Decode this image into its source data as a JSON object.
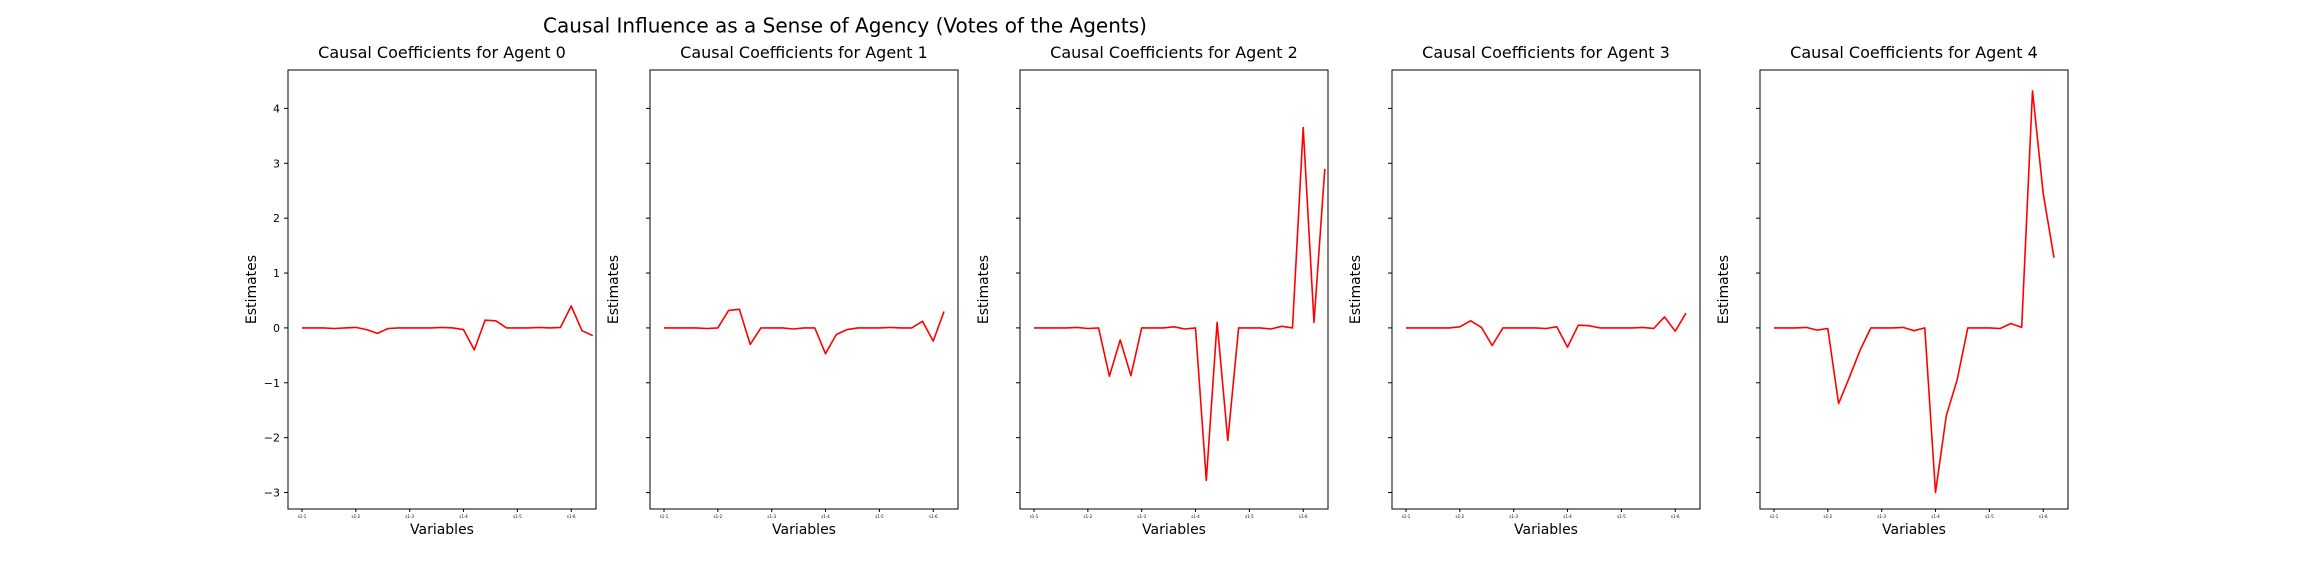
{
  "figure": {
    "suptitle": "Causal Influence as a Sense of Agency (Votes of the Agents)"
  },
  "colors": {
    "line": "#ff0000",
    "axes": "#000000",
    "background": "#ffffff"
  },
  "chart_data": [
    {
      "type": "line",
      "title": "Causal Coefficients for Agent 0",
      "xlabel": "Variables",
      "ylabel": "Estimates",
      "ylim": [
        -3.3,
        4.7
      ],
      "yticks": [
        -3,
        -2,
        -1,
        0,
        1,
        2,
        3,
        4
      ],
      "xtick_labels": [
        "s1-1",
        "s1-2",
        "s1-3",
        "s1-4",
        "s1-5",
        "s1-6"
      ],
      "xtick_positions": [
        0,
        5,
        10,
        15,
        20,
        25
      ],
      "grid": false,
      "series": [
        {
          "values": [
            0.0,
            0.0,
            0.0,
            -0.01,
            0.0,
            0.01,
            -0.03,
            -0.1,
            -0.01,
            0.0,
            0.0,
            0.0,
            0.0,
            0.01,
            0.0,
            -0.03,
            -0.4,
            0.14,
            0.13,
            0.0,
            0.0,
            0.0,
            0.01,
            0.0,
            0.01,
            0.4,
            -0.05,
            -0.14
          ]
        }
      ]
    },
    {
      "type": "line",
      "title": "Causal Coefficients for Agent 1",
      "xlabel": "Variables",
      "ylabel": "Estimates",
      "ylim": [
        -3.3,
        4.7
      ],
      "yticks": [
        -3,
        -2,
        -1,
        0,
        1,
        2,
        3,
        4
      ],
      "xtick_labels": [
        "s1-1",
        "s1-2",
        "s1-3",
        "s1-4",
        "s1-5",
        "s1-6"
      ],
      "xtick_positions": [
        0,
        5,
        10,
        15,
        20,
        25
      ],
      "grid": false,
      "series": [
        {
          "values": [
            0.0,
            0.0,
            0.0,
            0.0,
            -0.01,
            0.0,
            0.32,
            0.34,
            -0.3,
            0.0,
            0.0,
            0.0,
            -0.02,
            0.0,
            0.0,
            -0.47,
            -0.12,
            -0.03,
            0.0,
            0.0,
            0.0,
            0.01,
            0.0,
            0.0,
            0.12,
            -0.24,
            0.3
          ]
        }
      ]
    },
    {
      "type": "line",
      "title": "Causal Coefficients for Agent 2",
      "xlabel": "Variables",
      "ylabel": "Estimates",
      "ylim": [
        -3.3,
        4.7
      ],
      "yticks": [
        -3,
        -2,
        -1,
        0,
        1,
        2,
        3,
        4
      ],
      "xtick_labels": [
        "s1-1",
        "s1-2",
        "s1-3",
        "s1-4",
        "s1-5",
        "s1-6"
      ],
      "xtick_positions": [
        0,
        5,
        10,
        15,
        20,
        25
      ],
      "grid": false,
      "series": [
        {
          "values": [
            0.0,
            0.0,
            0.0,
            0.0,
            0.01,
            -0.01,
            0.0,
            -0.88,
            -0.22,
            -0.87,
            0.0,
            0.0,
            0.0,
            0.02,
            -0.02,
            0.0,
            -2.78,
            0.1,
            -2.05,
            0.0,
            0.0,
            0.0,
            -0.02,
            0.03,
            0.0,
            3.65,
            0.1,
            2.9
          ]
        }
      ]
    },
    {
      "type": "line",
      "title": "Causal Coefficients for Agent 3",
      "xlabel": "Variables",
      "ylabel": "Estimates",
      "ylim": [
        -3.3,
        4.7
      ],
      "yticks": [
        -3,
        -2,
        -1,
        0,
        1,
        2,
        3,
        4
      ],
      "xtick_labels": [
        "s1-1",
        "s1-2",
        "s1-3",
        "s1-4",
        "s1-5",
        "s1-6"
      ],
      "xtick_positions": [
        0,
        5,
        10,
        15,
        20,
        25
      ],
      "grid": false,
      "series": [
        {
          "values": [
            0.0,
            0.0,
            0.0,
            0.0,
            0.0,
            0.02,
            0.13,
            0.01,
            -0.32,
            0.0,
            0.0,
            0.0,
            0.0,
            -0.01,
            0.02,
            -0.35,
            0.05,
            0.04,
            0.0,
            0.0,
            0.0,
            0.0,
            0.01,
            -0.01,
            0.2,
            -0.06,
            0.27
          ]
        }
      ]
    },
    {
      "type": "line",
      "title": "Causal Coefficients for Agent 4",
      "xlabel": "Variables",
      "ylabel": "Estimates",
      "ylim": [
        -3.3,
        4.7
      ],
      "yticks": [
        -3,
        -2,
        -1,
        0,
        1,
        2,
        3,
        4
      ],
      "xtick_labels": [
        "s1-1",
        "s1-2",
        "s1-3",
        "s1-4",
        "s1-5",
        "s1-6"
      ],
      "xtick_positions": [
        0,
        5,
        10,
        15,
        20,
        25
      ],
      "grid": false,
      "series": [
        {
          "values": [
            0.0,
            0.0,
            0.0,
            0.01,
            -0.04,
            -0.01,
            -1.38,
            -0.9,
            -0.4,
            0.0,
            0.0,
            0.0,
            0.01,
            -0.05,
            0.0,
            -3.0,
            -1.6,
            -0.95,
            0.0,
            0.0,
            0.0,
            -0.01,
            0.08,
            0.01,
            4.32,
            2.45,
            1.28
          ]
        }
      ]
    }
  ]
}
